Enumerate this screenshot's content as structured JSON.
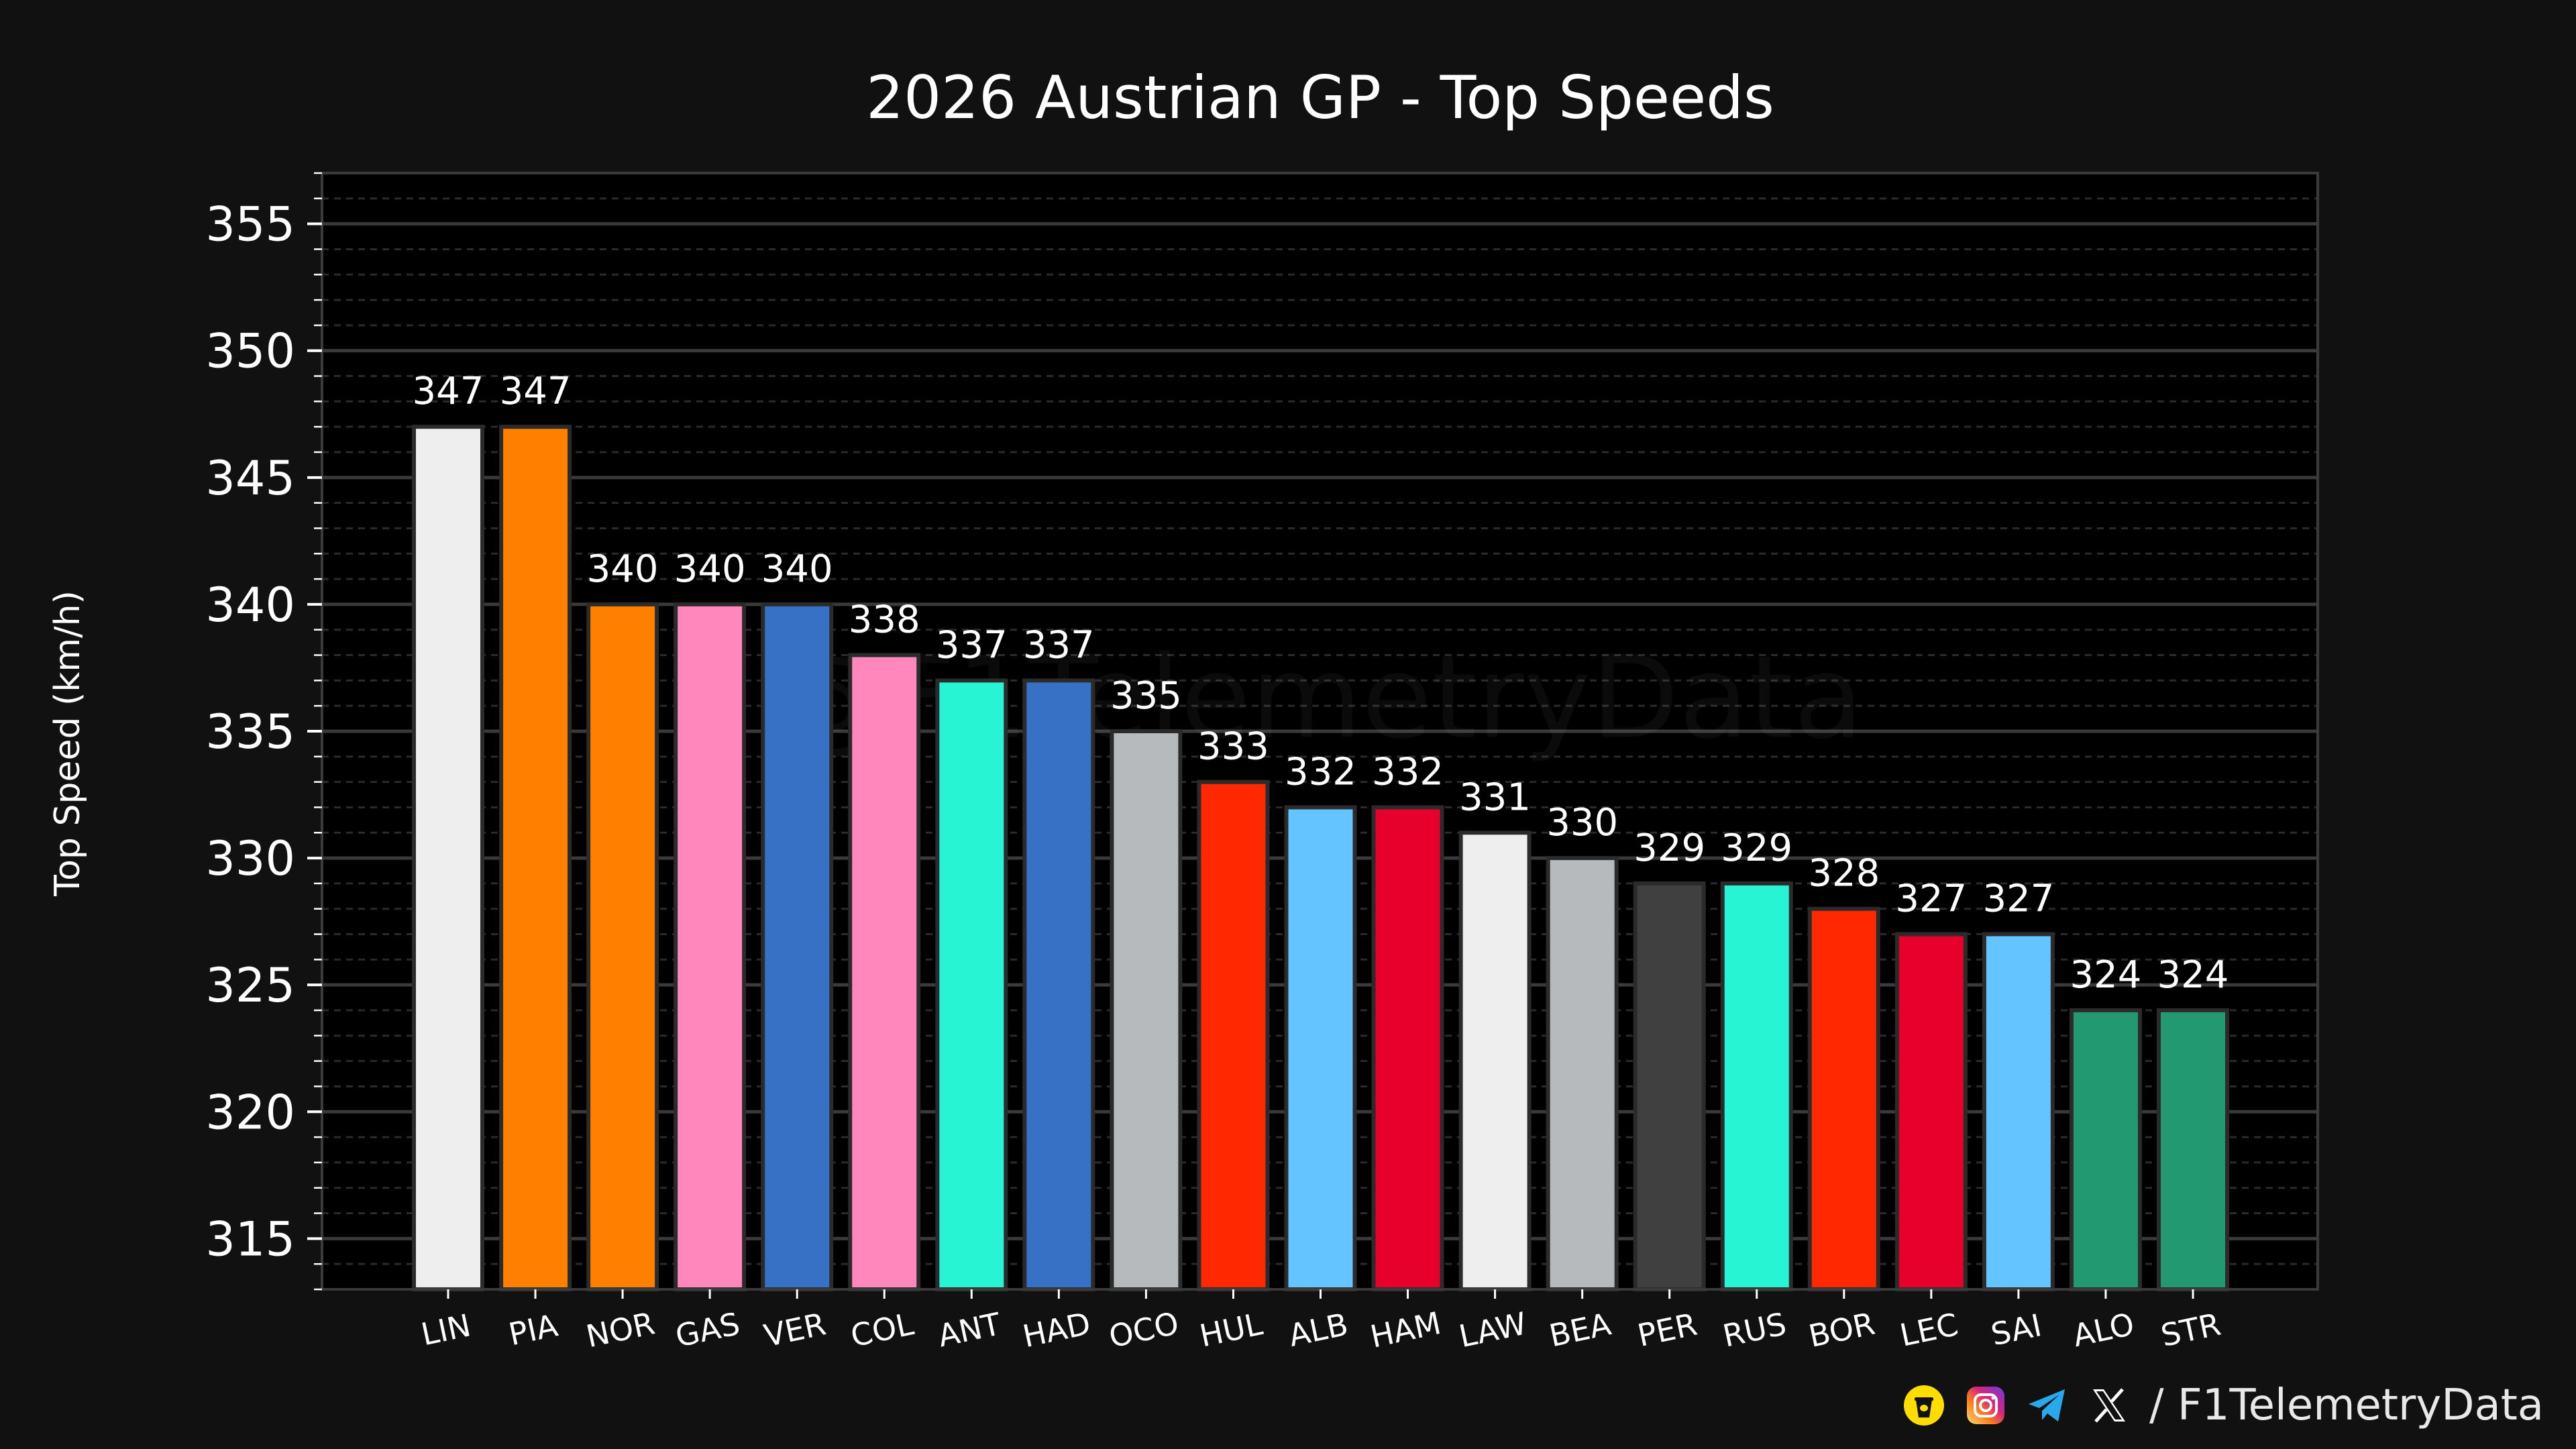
{
  "chart_data": {
    "type": "bar",
    "title": "2026 Austrian GP - Top Speeds",
    "ylabel": "Top Speed (km/h)",
    "xlabel": "",
    "ylim": [
      313,
      357
    ],
    "yticks": [
      315,
      320,
      325,
      330,
      335,
      340,
      345,
      350,
      355
    ],
    "grid": true,
    "categories": [
      "LIN",
      "PIA",
      "NOR",
      "GAS",
      "VER",
      "COL",
      "ANT",
      "HAD",
      "OCO",
      "HUL",
      "ALB",
      "HAM",
      "LAW",
      "BEA",
      "PER",
      "RUS",
      "BOR",
      "LEC",
      "SAI",
      "ALO",
      "STR"
    ],
    "values": [
      347,
      347,
      340,
      340,
      340,
      338,
      337,
      337,
      335,
      333,
      332,
      332,
      331,
      330,
      329,
      329,
      328,
      327,
      327,
      324,
      324
    ],
    "colors": [
      "#eeeeee",
      "#ff8000",
      "#ff8000",
      "#ff87bc",
      "#3671c6",
      "#ff87bc",
      "#27f4d2",
      "#3671c6",
      "#b6babd",
      "#ff2800",
      "#64c4ff",
      "#e8002d",
      "#eeeeee",
      "#b6babd",
      "#404040",
      "#27f4d2",
      "#ff2800",
      "#e8002d",
      "#64c4ff",
      "#229971",
      "#229971"
    ],
    "watermark": "@F1TelemetryData"
  },
  "footer": {
    "handle": "/ F1TelemetryData",
    "icons": [
      "buymeacoffee-icon",
      "instagram-icon",
      "telegram-icon",
      "x-icon"
    ]
  },
  "colors": {
    "background": "#111111",
    "plot_background": "#000000",
    "grid_major": "#3a3a3a",
    "grid_minor": "#2a2a2a",
    "text": "#ffffff"
  }
}
